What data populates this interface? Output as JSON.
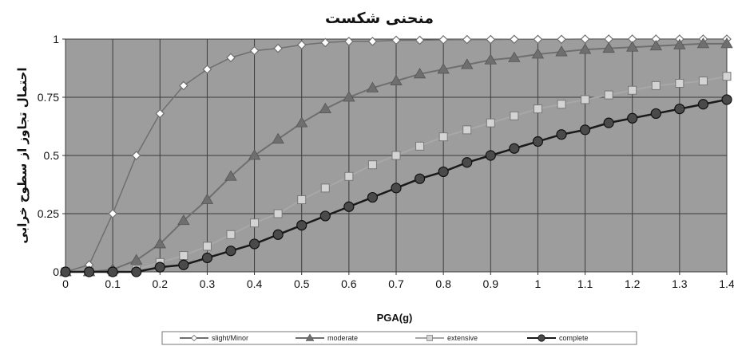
{
  "chart_data": {
    "type": "line",
    "title": "منحنی شکست",
    "xlabel": "PGA(g)",
    "ylabel": "احتمال تجاوز از سطوح خرابی",
    "xlim": [
      0,
      1.4
    ],
    "ylim": [
      0,
      1
    ],
    "x_ticks": [
      "0",
      "0.1",
      "0.2",
      "0.3",
      "0.4",
      "0.5",
      "0.6",
      "0.7",
      "0.8",
      "0.9",
      "1",
      "1.1",
      "1.2",
      "1.3",
      "1.4"
    ],
    "y_ticks": [
      "0",
      "0.25",
      "0.5",
      "0.75",
      "1"
    ],
    "grid": true,
    "legend_position": "bottom",
    "x": [
      0,
      0.05,
      0.1,
      0.15,
      0.2,
      0.25,
      0.3,
      0.35,
      0.4,
      0.45,
      0.5,
      0.55,
      0.6,
      0.65,
      0.7,
      0.75,
      0.8,
      0.85,
      0.9,
      0.95,
      1.0,
      1.05,
      1.1,
      1.15,
      1.2,
      1.25,
      1.3,
      1.35,
      1.4
    ],
    "series": [
      {
        "name": "slight/Minor",
        "marker": "diamond",
        "color": "#6f6f6f",
        "values": [
          0,
          0.03,
          0.25,
          0.5,
          0.68,
          0.8,
          0.87,
          0.92,
          0.95,
          0.96,
          0.975,
          0.985,
          0.99,
          0.99,
          0.995,
          0.995,
          0.997,
          0.998,
          0.998,
          0.999,
          0.999,
          0.999,
          1,
          1,
          1,
          1,
          1,
          1,
          1
        ]
      },
      {
        "name": "moderate",
        "marker": "triangle",
        "color": "#6f6f6f",
        "values": [
          0,
          0,
          0.01,
          0.05,
          0.12,
          0.22,
          0.31,
          0.41,
          0.5,
          0.57,
          0.64,
          0.7,
          0.75,
          0.79,
          0.82,
          0.85,
          0.87,
          0.89,
          0.91,
          0.92,
          0.935,
          0.945,
          0.955,
          0.96,
          0.965,
          0.97,
          0.975,
          0.98,
          0.98
        ]
      },
      {
        "name": "extensive",
        "marker": "square",
        "color": "#a8a8a8",
        "values": [
          0,
          0,
          0,
          0.01,
          0.04,
          0.07,
          0.11,
          0.16,
          0.21,
          0.25,
          0.31,
          0.36,
          0.41,
          0.46,
          0.5,
          0.54,
          0.58,
          0.61,
          0.64,
          0.67,
          0.7,
          0.72,
          0.74,
          0.76,
          0.78,
          0.8,
          0.81,
          0.82,
          0.84
        ]
      },
      {
        "name": "complete",
        "marker": "circle",
        "color": "#1a1a1a",
        "values": [
          0,
          0,
          0,
          0,
          0.02,
          0.03,
          0.06,
          0.09,
          0.12,
          0.16,
          0.2,
          0.24,
          0.28,
          0.32,
          0.36,
          0.4,
          0.43,
          0.47,
          0.5,
          0.53,
          0.56,
          0.59,
          0.61,
          0.64,
          0.66,
          0.68,
          0.7,
          0.72,
          0.74
        ]
      }
    ]
  }
}
